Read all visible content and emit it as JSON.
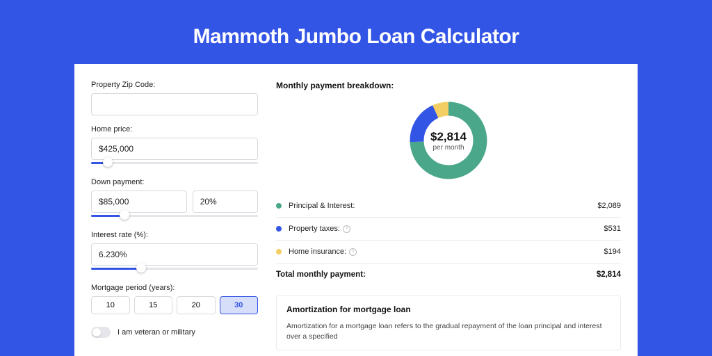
{
  "page": {
    "title": "Mammoth Jumbo Loan Calculator",
    "background_color": "#3355e6",
    "card_background": "#ffffff"
  },
  "form": {
    "zip": {
      "label": "Property Zip Code:",
      "value": ""
    },
    "home_price": {
      "label": "Home price:",
      "value": "$425,000",
      "slider_pct": 10
    },
    "down_payment": {
      "label": "Down payment:",
      "amount": "$85,000",
      "percent": "20%",
      "slider_pct": 20
    },
    "interest_rate": {
      "label": "Interest rate (%):",
      "value": "6.230%",
      "slider_pct": 30
    },
    "mortgage_period": {
      "label": "Mortgage period (years):",
      "options": [
        "10",
        "15",
        "20",
        "30"
      ],
      "selected": "30"
    },
    "veteran": {
      "label": "I am veteran or military",
      "checked": false
    }
  },
  "breakdown": {
    "title": "Monthly payment breakdown:",
    "donut": {
      "center_value": "$2,814",
      "center_sub": "per month",
      "segments": [
        {
          "label": "Principal & Interest:",
          "value": "$2,089",
          "color": "#4aa789",
          "fraction": 0.742,
          "has_info": false
        },
        {
          "label": "Property taxes:",
          "value": "$531",
          "color": "#3355e6",
          "fraction": 0.189,
          "has_info": true
        },
        {
          "label": "Home insurance:",
          "value": "$194",
          "color": "#f3ce63",
          "fraction": 0.069,
          "has_info": true
        }
      ]
    },
    "total": {
      "label": "Total monthly payment:",
      "value": "$2,814"
    }
  },
  "amortization": {
    "title": "Amortization for mortgage loan",
    "text": "Amortization for a mortgage loan refers to the gradual repayment of the loan principal and interest over a specified"
  },
  "styling": {
    "accent": "#3355e6",
    "text_primary": "#111111",
    "text_secondary": "#555555",
    "border": "#d9d9de",
    "divider": "#eceaea",
    "slider_track": "#e5e5ea"
  }
}
